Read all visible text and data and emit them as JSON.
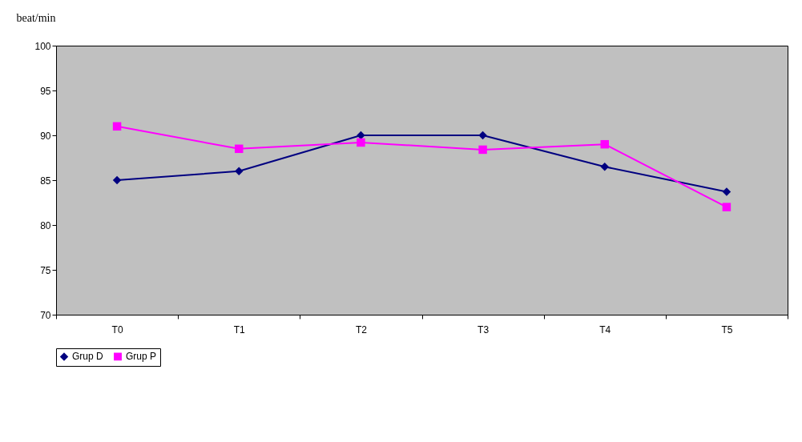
{
  "chart_data": {
    "type": "line",
    "ylabel": "beat/min",
    "categories": [
      "T0",
      "T1",
      "T2",
      "T3",
      "T4",
      "T5"
    ],
    "series": [
      {
        "name": "Grup D",
        "color": "#000080",
        "marker": "diamond",
        "values": [
          85,
          86,
          90,
          90,
          86.5,
          83.7
        ]
      },
      {
        "name": "Grup P",
        "color": "#ff00ff",
        "marker": "square",
        "values": [
          91,
          88.5,
          89.2,
          88.4,
          89,
          82
        ]
      }
    ],
    "ylim": [
      70,
      100
    ],
    "yticks": [
      70,
      75,
      80,
      85,
      90,
      95,
      100
    ],
    "grid": false,
    "legend": "bottom"
  }
}
